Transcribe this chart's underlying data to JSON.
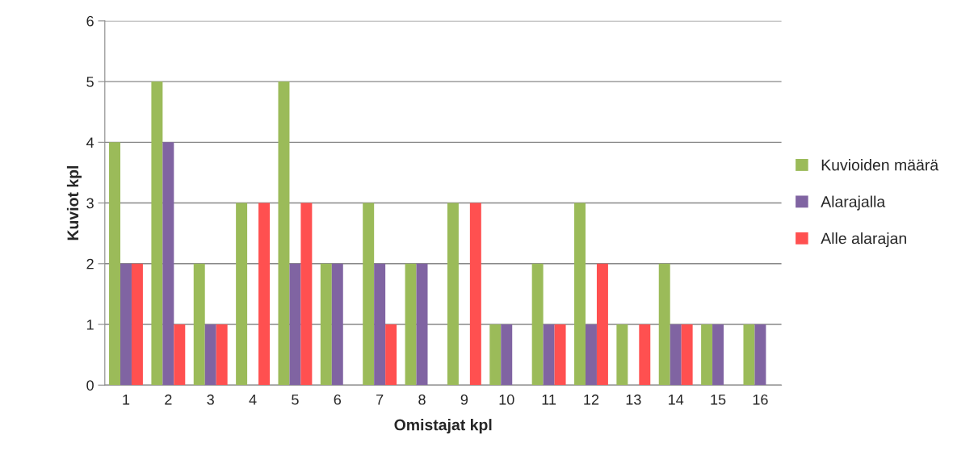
{
  "chart_data": {
    "type": "bar",
    "xlabel": "Omistajat kpl",
    "ylabel": "Kuviot kpl",
    "categories": [
      "1",
      "2",
      "3",
      "4",
      "5",
      "6",
      "7",
      "8",
      "9",
      "10",
      "11",
      "12",
      "13",
      "14",
      "15",
      "16"
    ],
    "series": [
      {
        "name": "Kuvioiden määrä",
        "color": "#9bbb59",
        "values": [
          4,
          5,
          2,
          3,
          5,
          2,
          3,
          2,
          3,
          1,
          2,
          3,
          1,
          2,
          1,
          1
        ]
      },
      {
        "name": "Alarajalla",
        "color": "#8064a2",
        "values": [
          2,
          4,
          1,
          null,
          2,
          2,
          2,
          2,
          null,
          1,
          1,
          1,
          null,
          1,
          1,
          1
        ]
      },
      {
        "name": "Alle alarajan",
        "color": "#ff5050",
        "values": [
          2,
          1,
          1,
          3,
          3,
          null,
          1,
          null,
          3,
          null,
          1,
          2,
          1,
          1,
          null,
          null
        ]
      }
    ],
    "ylim": [
      0,
      6
    ],
    "yticks": [
      0,
      1,
      2,
      3,
      4,
      5,
      6
    ],
    "grid": "y",
    "legend": "right"
  }
}
